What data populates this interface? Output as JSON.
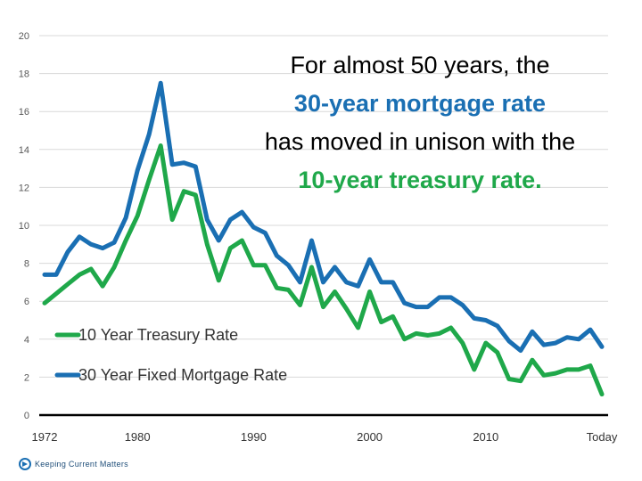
{
  "headline": {
    "line1": "For almost 50 years, the",
    "line2": "30-year mortgage rate",
    "line3": "has moved in unison with the",
    "line4": "10-year treasury rate."
  },
  "brand": {
    "name": "Keeping Current Matters",
    "icon": "kcm-logo-icon"
  },
  "colors": {
    "mortgage": "#1a6fb3",
    "treasury": "#1fa84a",
    "headline_blue": "#1a6fb3",
    "headline_green": "#1fa84a"
  },
  "chart_data": {
    "type": "line",
    "title": "",
    "xlabel": "",
    "ylabel": "",
    "ylim": [
      0,
      20
    ],
    "yticks": [
      "0",
      "2",
      "4",
      "6",
      "8",
      "10",
      "12",
      "14",
      "16",
      "18",
      "20"
    ],
    "xticks": [
      "1972",
      "1980",
      "1990",
      "2000",
      "2010",
      "Today"
    ],
    "grid": true,
    "legend_position": "bottom-left",
    "x": [
      1972,
      1973,
      1974,
      1975,
      1976,
      1977,
      1978,
      1979,
      1980,
      1981,
      1982,
      1983,
      1984,
      1985,
      1986,
      1987,
      1988,
      1989,
      1990,
      1991,
      1992,
      1993,
      1994,
      1995,
      1996,
      1997,
      1998,
      1999,
      2000,
      2001,
      2002,
      2003,
      2004,
      2005,
      2006,
      2007,
      2008,
      2009,
      2010,
      2011,
      2012,
      2013,
      2014,
      2015,
      2016,
      2017,
      2018,
      2019,
      "Today"
    ],
    "series": [
      {
        "name": "30 Year Fixed Mortgage Rate",
        "color": "#1a6fb3",
        "values": [
          7.4,
          7.4,
          8.6,
          9.4,
          9.0,
          8.8,
          9.1,
          10.4,
          12.9,
          14.8,
          17.5,
          13.2,
          13.3,
          13.1,
          10.3,
          9.2,
          10.3,
          10.7,
          9.9,
          9.6,
          8.4,
          7.9,
          7.0,
          9.2,
          7.0,
          7.8,
          7.0,
          6.8,
          8.2,
          7.0,
          7.0,
          5.9,
          5.7,
          5.7,
          6.2,
          6.2,
          5.8,
          5.1,
          5.0,
          4.7,
          3.9,
          3.4,
          4.4,
          3.7,
          3.8,
          4.1,
          4.0,
          4.5,
          3.6
        ]
      },
      {
        "name": "10 Year Treasury Rate",
        "color": "#1fa84a",
        "values": [
          5.9,
          6.4,
          6.9,
          7.4,
          7.7,
          6.8,
          7.8,
          9.2,
          10.5,
          12.4,
          14.2,
          10.3,
          11.8,
          11.6,
          9.0,
          7.1,
          8.8,
          9.2,
          7.9,
          7.9,
          6.7,
          6.6,
          5.8,
          7.8,
          5.7,
          6.5,
          5.6,
          4.6,
          6.5,
          4.9,
          5.2,
          4.0,
          4.3,
          4.2,
          4.3,
          4.6,
          3.8,
          2.4,
          3.8,
          3.3,
          1.9,
          1.8,
          2.9,
          2.1,
          2.2,
          2.4,
          2.4,
          2.6,
          1.1
        ]
      }
    ],
    "legend": [
      {
        "label": "10 Year Treasury Rate",
        "color": "#1fa84a"
      },
      {
        "label": "30 Year Fixed Mortgage Rate",
        "color": "#1a6fb3"
      }
    ]
  }
}
